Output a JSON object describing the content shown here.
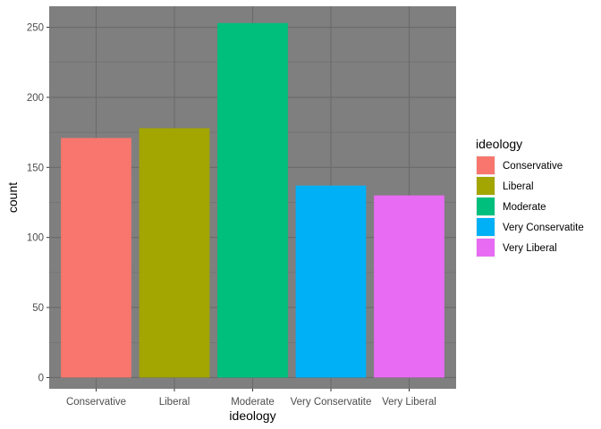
{
  "chart_data": {
    "type": "bar",
    "categories": [
      "Conservative",
      "Liberal",
      "Moderate",
      "Very Conservatite",
      "Very Liberal"
    ],
    "values": [
      171,
      178,
      253,
      137,
      130
    ],
    "colors": [
      "#F8766D",
      "#A3A500",
      "#00BF7D",
      "#00B0F6",
      "#E76BF3"
    ],
    "xlabel": "ideology",
    "ylabel": "count",
    "ylim": [
      -8,
      265
    ],
    "yticks": [
      0,
      50,
      100,
      150,
      200,
      250
    ],
    "grid": true,
    "panel_background": "#7F7F7F",
    "legend": {
      "title": "ideology",
      "placement": "right",
      "entries": [
        "Conservative",
        "Liberal",
        "Moderate",
        "Very Conservatite",
        "Very Liberal"
      ]
    }
  }
}
